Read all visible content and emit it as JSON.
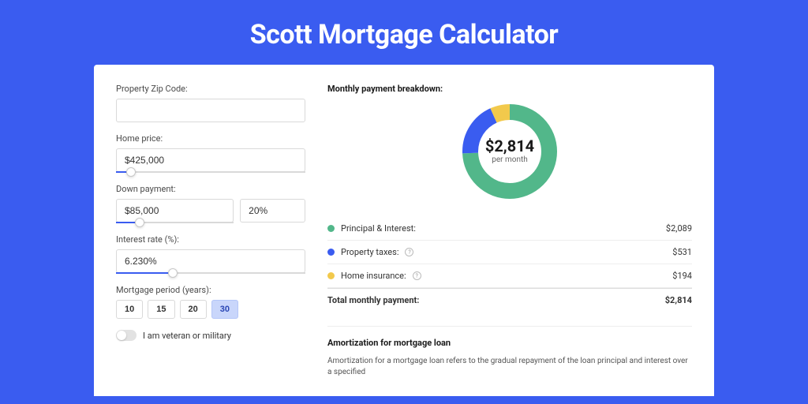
{
  "page": {
    "title": "Scott Mortgage Calculator",
    "background_color": "#3a5cf0",
    "card_background": "#ffffff"
  },
  "form": {
    "zip": {
      "label": "Property Zip Code:",
      "value": ""
    },
    "home_price": {
      "label": "Home price:",
      "value": "$425,000",
      "slider_percent": 8
    },
    "down_payment": {
      "label": "Down payment:",
      "amount": "$85,000",
      "percent": "20%",
      "slider_percent": 20
    },
    "interest_rate": {
      "label": "Interest rate (%):",
      "value": "6.230%",
      "slider_percent": 30
    },
    "mortgage_period": {
      "label": "Mortgage period (years):",
      "options": [
        "10",
        "15",
        "20",
        "30"
      ],
      "selected": "30"
    },
    "veteran": {
      "label": "I am veteran or military",
      "checked": false
    }
  },
  "breakdown": {
    "title": "Monthly payment breakdown:",
    "donut": {
      "center_amount": "$2,814",
      "center_sub": "per month",
      "slices": [
        {
          "name": "principal_interest",
          "value": 2089,
          "percent": 74.24,
          "color": "#52b78a"
        },
        {
          "name": "property_taxes",
          "value": 531,
          "percent": 18.87,
          "color": "#3a5cf0"
        },
        {
          "name": "home_insurance",
          "value": 194,
          "percent": 6.89,
          "color": "#f2c94c"
        }
      ],
      "stroke_width": 20,
      "radius": 50,
      "background_color": "#ffffff"
    },
    "items": [
      {
        "label": "Principal & Interest:",
        "value": "$2,089",
        "dot_color": "#52b78a",
        "has_info": false
      },
      {
        "label": "Property taxes:",
        "value": "$531",
        "dot_color": "#3a5cf0",
        "has_info": true
      },
      {
        "label": "Home insurance:",
        "value": "$194",
        "dot_color": "#f2c94c",
        "has_info": true
      }
    ],
    "total": {
      "label": "Total monthly payment:",
      "value": "$2,814"
    }
  },
  "amortization": {
    "title": "Amortization for mortgage loan",
    "text": "Amortization for a mortgage loan refers to the gradual repayment of the loan principal and interest over a specified"
  }
}
